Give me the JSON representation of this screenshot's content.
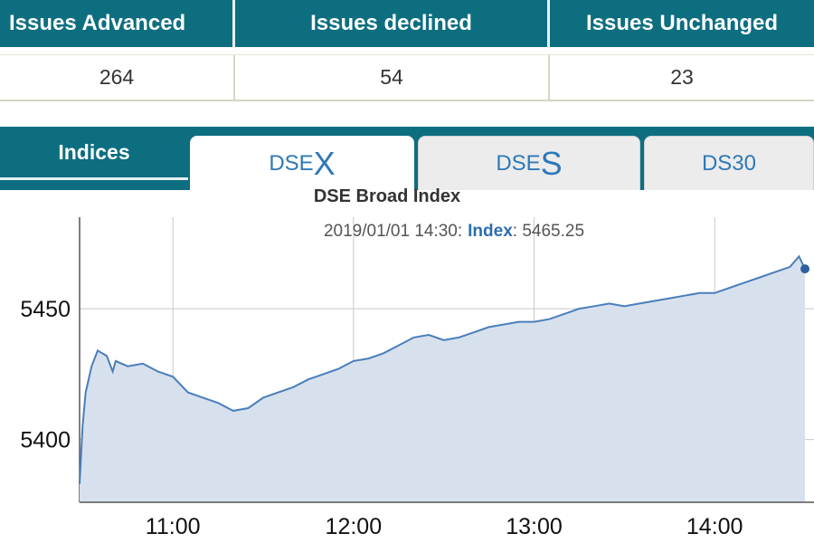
{
  "stats": {
    "headers": [
      "Issues Advanced",
      "Issues declined",
      "Issues Unchanged"
    ],
    "values": [
      "264",
      "54",
      "23"
    ]
  },
  "tabs": {
    "indices_label": "Indices",
    "dsex_prefix": "DSE",
    "dsex_suffix": "X",
    "dses_prefix": "DSE",
    "dses_suffix": "S",
    "ds30_label": "DS30",
    "active": "DSEX"
  },
  "chart_data": {
    "type": "area",
    "title": "DSE Broad Index",
    "tooltip": {
      "date": "2019/01/01 14:30:",
      "series_label": "Index",
      "value_text": ": 5465.25"
    },
    "series": [
      {
        "color": "#4a7ebb",
        "fill": "#d7e1ee",
        "points": [
          [
            "10:29",
            5383
          ],
          [
            "10:30",
            5405
          ],
          [
            "10:31",
            5418
          ],
          [
            "10:33",
            5428
          ],
          [
            "10:35",
            5434
          ],
          [
            "10:38",
            5432
          ],
          [
            "10:40",
            5426
          ],
          [
            "10:41",
            5430
          ],
          [
            "10:45",
            5428
          ],
          [
            "10:50",
            5429
          ],
          [
            "10:55",
            5426
          ],
          [
            "11:00",
            5424
          ],
          [
            "11:05",
            5418
          ],
          [
            "11:10",
            5416
          ],
          [
            "11:15",
            5414
          ],
          [
            "11:20",
            5411
          ],
          [
            "11:25",
            5412
          ],
          [
            "11:30",
            5416
          ],
          [
            "11:35",
            5418
          ],
          [
            "11:40",
            5420
          ],
          [
            "11:45",
            5423
          ],
          [
            "11:50",
            5425
          ],
          [
            "11:55",
            5427
          ],
          [
            "12:00",
            5430
          ],
          [
            "12:05",
            5431
          ],
          [
            "12:10",
            5433
          ],
          [
            "12:15",
            5436
          ],
          [
            "12:20",
            5439
          ],
          [
            "12:25",
            5440
          ],
          [
            "12:30",
            5438
          ],
          [
            "12:35",
            5439
          ],
          [
            "12:40",
            5441
          ],
          [
            "12:45",
            5443
          ],
          [
            "12:50",
            5444
          ],
          [
            "12:55",
            5445
          ],
          [
            "13:00",
            5445
          ],
          [
            "13:05",
            5446
          ],
          [
            "13:10",
            5448
          ],
          [
            "13:15",
            5450
          ],
          [
            "13:20",
            5451
          ],
          [
            "13:25",
            5452
          ],
          [
            "13:30",
            5451
          ],
          [
            "13:35",
            5452
          ],
          [
            "13:40",
            5453
          ],
          [
            "13:45",
            5454
          ],
          [
            "13:50",
            5455
          ],
          [
            "13:55",
            5456
          ],
          [
            "14:00",
            5456
          ],
          [
            "14:05",
            5458
          ],
          [
            "14:10",
            5460
          ],
          [
            "14:15",
            5462
          ],
          [
            "14:20",
            5464
          ],
          [
            "14:25",
            5466
          ],
          [
            "14:28",
            5470
          ],
          [
            "14:30",
            5465.25
          ]
        ]
      }
    ],
    "x_tick_labels": [
      "11:00",
      "12:00",
      "13:00",
      "14:00"
    ],
    "y_tick_labels": [
      "5400",
      "5450"
    ],
    "xlim": [
      "10:29",
      "14:33"
    ],
    "ylim": [
      5376,
      5485
    ],
    "grid": true,
    "legend": "none"
  }
}
